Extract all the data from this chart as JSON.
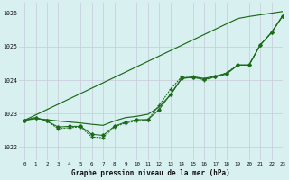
{
  "title": "Graphe pression niveau de la mer (hPa)",
  "background_color": "#d8f0f0",
  "grid_color": "#c8c8d8",
  "line_color": "#1a6b1a",
  "xlim": [
    -0.5,
    23
  ],
  "ylim": [
    1021.6,
    1026.3
  ],
  "yticks": [
    1022,
    1023,
    1024,
    1025,
    1026
  ],
  "xticks": [
    0,
    1,
    2,
    3,
    4,
    5,
    6,
    7,
    8,
    9,
    10,
    11,
    12,
    13,
    14,
    15,
    16,
    17,
    18,
    19,
    20,
    21,
    22,
    23
  ],
  "series": {
    "line_straight": [
      1022.8,
      1022.96,
      1023.12,
      1023.28,
      1023.44,
      1023.6,
      1023.76,
      1023.92,
      1024.08,
      1024.24,
      1024.4,
      1024.56,
      1024.72,
      1024.88,
      1025.04,
      1025.2,
      1025.36,
      1025.52,
      1025.68,
      1025.84,
      1025.9,
      1025.95,
      1026.0,
      1026.05
    ],
    "line_upper": [
      1022.8,
      1022.85,
      1022.82,
      1022.78,
      1022.75,
      1022.72,
      1022.68,
      1022.65,
      1022.78,
      1022.88,
      1022.92,
      1022.98,
      1023.2,
      1023.55,
      1024.05,
      1024.1,
      1024.05,
      1024.12,
      1024.2,
      1024.45,
      1024.45,
      1025.05,
      1025.42,
      1025.92
    ],
    "line_marker": [
      1022.8,
      1022.88,
      1022.78,
      1022.6,
      1022.62,
      1022.62,
      1022.38,
      1022.35,
      1022.62,
      1022.75,
      1022.82,
      1022.82,
      1023.12,
      1023.58,
      1024.05,
      1024.08,
      1024.02,
      1024.1,
      1024.18,
      1024.45,
      1024.45,
      1025.05,
      1025.42,
      1025.92
    ],
    "line_dotted": [
      1022.8,
      1022.88,
      1022.78,
      1022.55,
      1022.58,
      1022.6,
      1022.3,
      1022.28,
      1022.6,
      1022.72,
      1022.78,
      1022.82,
      1023.25,
      1023.72,
      1024.1,
      1024.12,
      1024.0,
      1024.1,
      1024.22,
      1024.45,
      1024.45,
      1025.05,
      1025.42,
      1025.92
    ]
  }
}
